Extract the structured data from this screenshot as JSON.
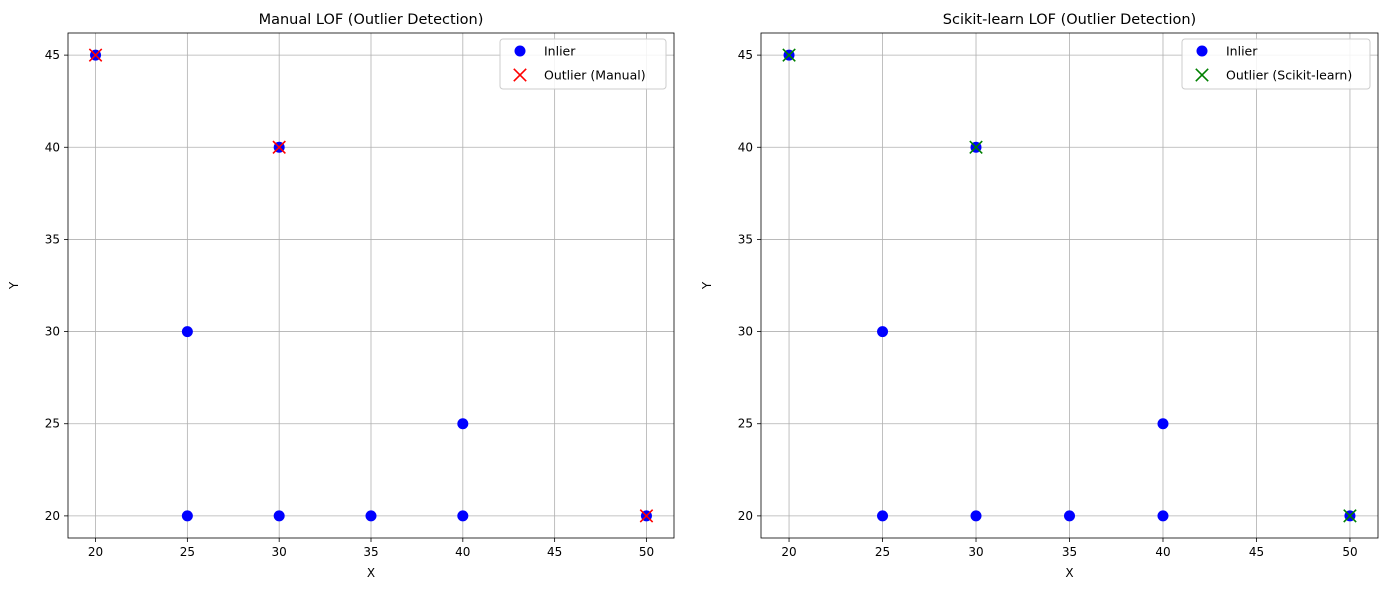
{
  "chart_data": [
    {
      "type": "scatter",
      "title": "Manual LOF (Outlier Detection)",
      "xlabel": "X",
      "ylabel": "Y",
      "xlim": [
        18.5,
        51.5
      ],
      "ylim": [
        18.8,
        46.2
      ],
      "xticks": [
        20,
        25,
        30,
        35,
        40,
        45,
        50
      ],
      "yticks": [
        20,
        25,
        30,
        35,
        40,
        45
      ],
      "grid": true,
      "legend_position": "top-right",
      "series": [
        {
          "name": "Inlier",
          "marker": "circle",
          "color": "#0000ff",
          "points": [
            [
              20,
              45
            ],
            [
              30,
              40
            ],
            [
              25,
              30
            ],
            [
              40,
              25
            ],
            [
              25,
              20
            ],
            [
              30,
              20
            ],
            [
              35,
              20
            ],
            [
              40,
              20
            ],
            [
              50,
              20
            ]
          ]
        },
        {
          "name": "Outlier (Manual)",
          "marker": "x",
          "color": "#ff0000",
          "points": [
            [
              20,
              45
            ],
            [
              30,
              40
            ],
            [
              50,
              20
            ]
          ]
        }
      ]
    },
    {
      "type": "scatter",
      "title": "Scikit-learn LOF (Outlier Detection)",
      "xlabel": "X",
      "ylabel": "Y",
      "xlim": [
        18.5,
        51.5
      ],
      "ylim": [
        18.8,
        46.2
      ],
      "xticks": [
        20,
        25,
        30,
        35,
        40,
        45,
        50
      ],
      "yticks": [
        20,
        25,
        30,
        35,
        40,
        45
      ],
      "grid": true,
      "legend_position": "top-right",
      "series": [
        {
          "name": "Inlier",
          "marker": "circle",
          "color": "#0000ff",
          "points": [
            [
              20,
              45
            ],
            [
              30,
              40
            ],
            [
              25,
              30
            ],
            [
              40,
              25
            ],
            [
              25,
              20
            ],
            [
              30,
              20
            ],
            [
              35,
              20
            ],
            [
              40,
              20
            ],
            [
              50,
              20
            ]
          ]
        },
        {
          "name": "Outlier (Scikit-learn)",
          "marker": "x",
          "color": "#008000",
          "points": [
            [
              20,
              45
            ],
            [
              30,
              40
            ],
            [
              50,
              20
            ]
          ]
        }
      ]
    }
  ]
}
